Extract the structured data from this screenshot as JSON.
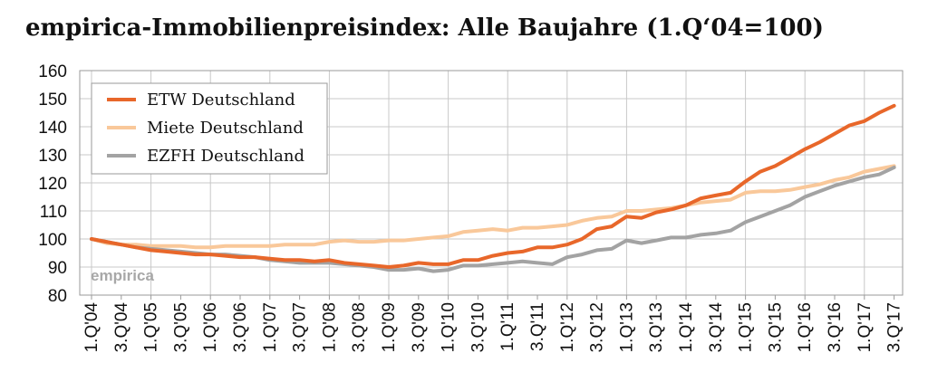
{
  "title": "empirica-Immobilienpreisindex: Alle Baujahre (1.Q‘04=100)",
  "watermark": "empirica",
  "colors": {
    "ETW": "#e8672a",
    "Miete": "#f9c89a",
    "EZFH": "#a3a3a3",
    "grid": "#c8c8c8"
  },
  "chart_data": {
    "type": "line",
    "title": "empirica-Immobilienpreisindex: Alle Baujahre (1.Q‘04=100)",
    "xlabel": "",
    "ylabel": "",
    "ylim": [
      80,
      160
    ],
    "yticks": [
      80,
      90,
      100,
      110,
      120,
      130,
      140,
      150,
      160
    ],
    "grid": true,
    "legend": "top-left",
    "x": [
      "1.Q'04",
      "2.Q'04",
      "3.Q'04",
      "4.Q'04",
      "1.Q'05",
      "2.Q'05",
      "3.Q'05",
      "4.Q'05",
      "1.Q'06",
      "2.Q'06",
      "3.Q'06",
      "4.Q'06",
      "1.Q'07",
      "2.Q'07",
      "3.Q'07",
      "4.Q'07",
      "1.Q'08",
      "2.Q'08",
      "3.Q'08",
      "4.Q'08",
      "1.Q'09",
      "2.Q'09",
      "3.Q'09",
      "4.Q'09",
      "1.Q'10",
      "2.Q'10",
      "3.Q'10",
      "4.Q'10",
      "1.Q'11",
      "2.Q'11",
      "3.Q'11",
      "4.Q'11",
      "1.Q'12",
      "2.Q'12",
      "3.Q'12",
      "4.Q'12",
      "1.Q'13",
      "2.Q'13",
      "3.Q'13",
      "4.Q'13",
      "1.Q'14",
      "2.Q'14",
      "3.Q'14",
      "4.Q'14",
      "1.Q'15",
      "2.Q'15",
      "3.Q'15",
      "4.Q'15",
      "1.Q'16",
      "2.Q'16",
      "3.Q'16",
      "4.Q'16",
      "1.Q'17",
      "2.Q'17",
      "3.Q'17"
    ],
    "xtick_labels": [
      "1.Q'04",
      "3.Q'04",
      "1.Q'05",
      "3.Q'05",
      "1.Q'06",
      "3.Q'06",
      "1.Q'07",
      "3.Q'07",
      "1.Q'08",
      "3.Q'08",
      "1.Q'09",
      "3.Q'09",
      "1.Q'10",
      "3.Q'10",
      "1.Q'11",
      "3.Q'11",
      "1.Q'12",
      "3.Q'12",
      "1.Q'13",
      "3.Q'13",
      "1.Q'14",
      "3.Q'14",
      "1.Q'15",
      "3.Q'15",
      "1.Q'16",
      "3.Q'16",
      "1.Q'17",
      "3.Q'17"
    ],
    "series": [
      {
        "name": "ETW Deutschland",
        "color_key": "ETW",
        "values": [
          100,
          99,
          98,
          97,
          96,
          95.5,
          95,
          94.5,
          94.5,
          94,
          93.5,
          93.5,
          93,
          92.5,
          92.5,
          92,
          92.5,
          91.5,
          91,
          90.5,
          90,
          90.5,
          91.5,
          91,
          91,
          92.5,
          92.5,
          94,
          95,
          95.5,
          97,
          97,
          98,
          100,
          103.5,
          104.5,
          108,
          107.5,
          109.5,
          110.5,
          112,
          114.5,
          115.5,
          116.5,
          120.5,
          124,
          126,
          129,
          132,
          134.5,
          137.5,
          140.5,
          142,
          145,
          147.5
        ]
      },
      {
        "name": "Miete  Deutschland",
        "color_key": "Miete",
        "values": [
          100,
          98.5,
          98,
          98,
          97.5,
          97.5,
          97.5,
          97,
          97,
          97.5,
          97.5,
          97.5,
          97.5,
          98,
          98,
          98,
          99,
          99.5,
          99,
          99,
          99.5,
          99.5,
          100,
          100.5,
          101,
          102.5,
          103,
          103.5,
          103,
          104,
          104,
          104.5,
          105,
          106.5,
          107.5,
          108,
          110,
          110,
          110.5,
          111,
          112,
          113,
          113.5,
          114,
          116.5,
          117,
          117,
          117.5,
          118.5,
          119.5,
          121,
          122,
          124,
          125,
          126
        ]
      },
      {
        "name": "EZFH  Deutschland",
        "color_key": "EZFH",
        "values": [
          100,
          99,
          98,
          97,
          96.5,
          96,
          95.5,
          95,
          94.5,
          94.5,
          94,
          93.5,
          92.5,
          92,
          91.5,
          91.5,
          91.5,
          91,
          90.5,
          90,
          89,
          89,
          89.5,
          88.5,
          89,
          90.5,
          90.5,
          91,
          91.5,
          92,
          91.5,
          91,
          93.5,
          94.5,
          96,
          96.5,
          99.5,
          98.5,
          99.5,
          100.5,
          100.5,
          101.5,
          102,
          103,
          106,
          108,
          110,
          112,
          115,
          117,
          119,
          120.5,
          122,
          123,
          125.5
        ]
      }
    ]
  }
}
